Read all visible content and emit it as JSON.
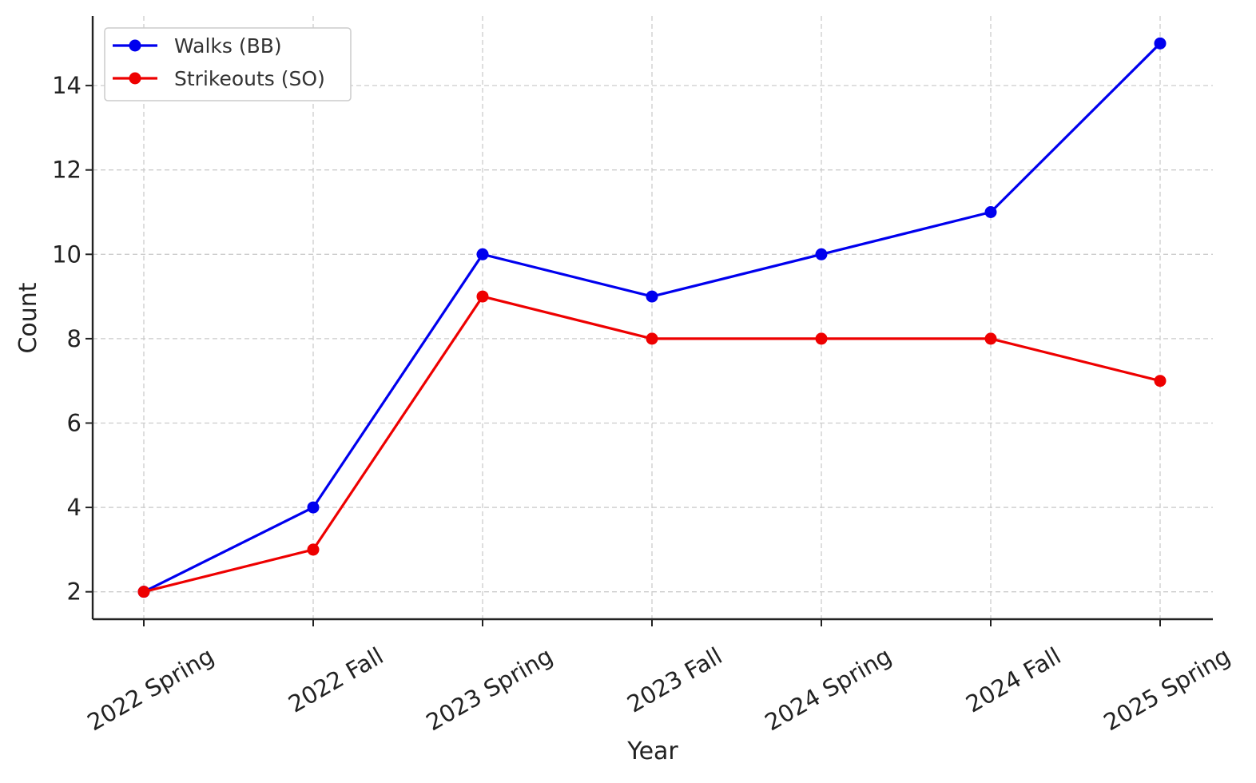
{
  "chart_data": {
    "type": "line",
    "title": "",
    "xlabel": "Year",
    "ylabel": "Count",
    "categories": [
      "2022 Spring",
      "2022 Fall",
      "2023 Spring",
      "2023 Fall",
      "2024 Spring",
      "2024 Fall",
      "2025 Spring"
    ],
    "series": [
      {
        "name": "Walks (BB)",
        "color": "#0000ee",
        "values": [
          2,
          4,
          10,
          9,
          10,
          11,
          15
        ]
      },
      {
        "name": "Strikeouts (SO)",
        "color": "#ee0000",
        "values": [
          2,
          3,
          9,
          8,
          8,
          8,
          7
        ]
      }
    ],
    "yticks": [
      "2",
      "4",
      "6",
      "8",
      "10",
      "12",
      "14"
    ],
    "ylim": [
      1.35,
      15.65
    ],
    "grid": true,
    "legend_position": "top-left",
    "marker": "circle"
  }
}
